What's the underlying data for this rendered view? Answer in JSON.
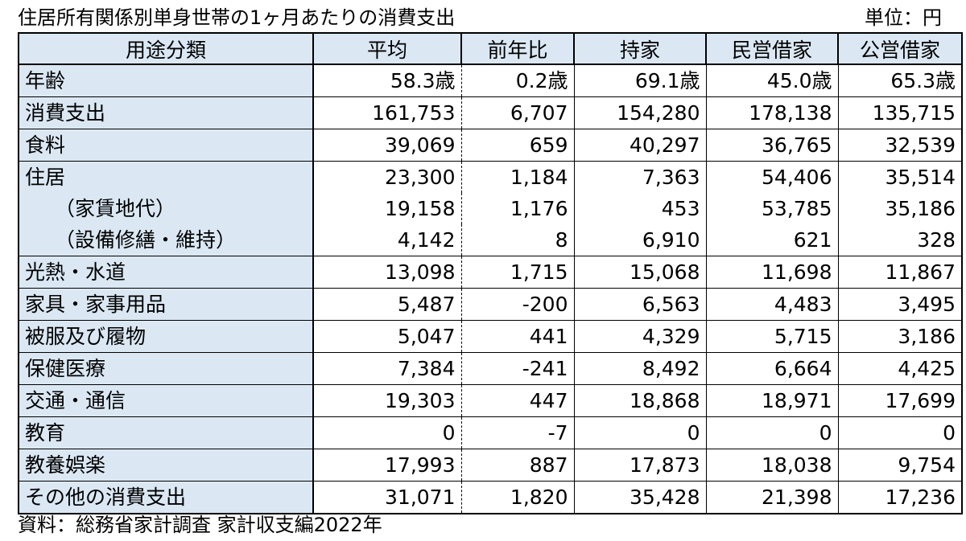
{
  "title": "住居所有関係別単身世帯の1ヶ月あたりの消費支出",
  "unit": "単位：円",
  "table": {
    "headers": [
      "用途分類",
      "平均",
      "前年比",
      "持家",
      "民営借家",
      "公営借家"
    ],
    "rows": [
      {
        "label": "年齢",
        "values": [
          "58.3歳",
          "0.2歳",
          "69.1歳",
          "45.0歳",
          "65.3歳"
        ]
      },
      {
        "label": "消費支出",
        "values": [
          "161,753",
          "6,707",
          "154,280",
          "178,138",
          "135,715"
        ]
      },
      {
        "label": "食料",
        "values": [
          "39,069",
          "659",
          "40,297",
          "36,765",
          "32,539"
        ]
      },
      {
        "label": "住居",
        "values": [
          "23,300",
          "1,184",
          "7,363",
          "54,406",
          "35,514"
        ]
      },
      {
        "label": "（家賃地代）",
        "values": [
          "19,158",
          "1,176",
          "453",
          "53,785",
          "35,186"
        ]
      },
      {
        "label": "（設備修繕・維持）",
        "values": [
          "4,142",
          "8",
          "6,910",
          "621",
          "328"
        ]
      },
      {
        "label": "光熱・水道",
        "values": [
          "13,098",
          "1,715",
          "15,068",
          "11,698",
          "11,867"
        ]
      },
      {
        "label": "家具・家事用品",
        "values": [
          "5,487",
          "-200",
          "6,563",
          "4,483",
          "3,495"
        ]
      },
      {
        "label": "被服及び履物",
        "values": [
          "5,047",
          "441",
          "4,329",
          "5,715",
          "3,186"
        ]
      },
      {
        "label": "保健医療",
        "values": [
          "7,384",
          "-241",
          "8,492",
          "6,664",
          "4,425"
        ]
      },
      {
        "label": "交通・通信",
        "values": [
          "19,303",
          "447",
          "18,868",
          "18,971",
          "17,699"
        ]
      },
      {
        "label": "教育",
        "values": [
          "0",
          "-7",
          "0",
          "0",
          "0"
        ]
      },
      {
        "label": "教養娯楽",
        "values": [
          "17,993",
          "887",
          "17,873",
          "18,038",
          "9,754"
        ]
      },
      {
        "label": "その他の消費支出",
        "values": [
          "31,071",
          "1,820",
          "35,428",
          "21,398",
          "17,236"
        ]
      }
    ]
  },
  "source": "資料：総務省家計調査 家計収支編2022年",
  "colors": {
    "header_bg": "#dbe8f4",
    "label_bg": "#dbe8f4",
    "border": "#000000"
  }
}
